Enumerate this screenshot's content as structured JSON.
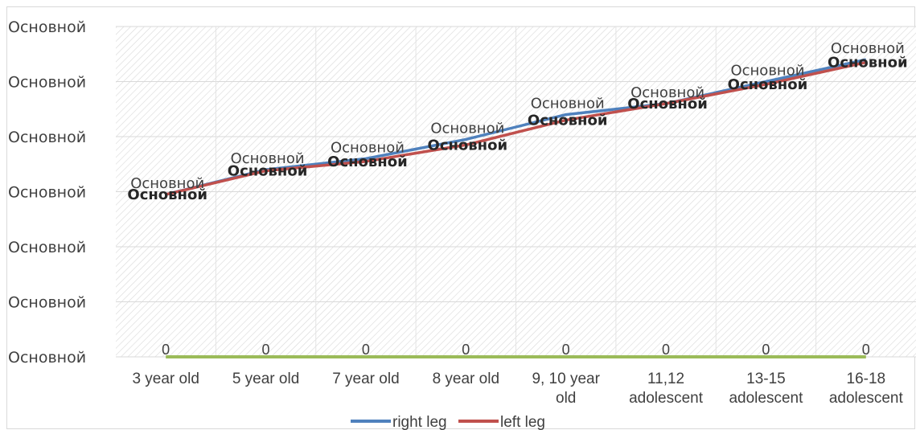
{
  "chart_data": {
    "type": "line",
    "title": "",
    "xlabel": "",
    "ylabel": "",
    "categories": [
      "3 year old",
      "5 year old",
      "7 year old",
      "8 year old",
      "9, 10 year old",
      "11,12 adolescent",
      "13-15 adolescent",
      "16-18 adolescent"
    ],
    "category_lines": [
      [
        "3 year old"
      ],
      [
        "5 year old"
      ],
      [
        "7 year old"
      ],
      [
        "8 year old"
      ],
      [
        "9, 10 year",
        "old"
      ],
      [
        "11,12",
        "adolescent"
      ],
      [
        "13-15",
        "adolescent"
      ],
      [
        "16-18",
        "adolescent"
      ]
    ],
    "y_tick_labels": [
      "Основной",
      "Основной",
      "Основной",
      "Основной",
      "Основной",
      "Основной",
      "Основной"
    ],
    "ylim": [
      0,
      6
    ],
    "grid": "horizontal",
    "legend_position": "bottom",
    "series": [
      {
        "name": "right leg",
        "color": "#4f81bd",
        "values": [
          2.95,
          3.4,
          3.6,
          3.95,
          4.4,
          4.6,
          5.0,
          5.4
        ],
        "labels": [
          "Основной",
          "Основной",
          "Основной",
          "Основной",
          "Основной",
          "Основной",
          "Основной",
          "Основной"
        ]
      },
      {
        "name": "left leg",
        "color": "#c0504d",
        "values": [
          2.95,
          3.38,
          3.55,
          3.85,
          4.3,
          4.6,
          4.95,
          5.35
        ],
        "labels": [
          "Основной",
          "Основной",
          "Основной",
          "Основной",
          "Основной",
          "Основной",
          "Основной",
          "Основной"
        ]
      },
      {
        "name": "",
        "color": "#9bbb59",
        "values": [
          0,
          0,
          0,
          0,
          0,
          0,
          0,
          0
        ],
        "labels": [
          "0",
          "0",
          "0",
          "0",
          "0",
          "0",
          "0",
          "0"
        ]
      }
    ]
  }
}
